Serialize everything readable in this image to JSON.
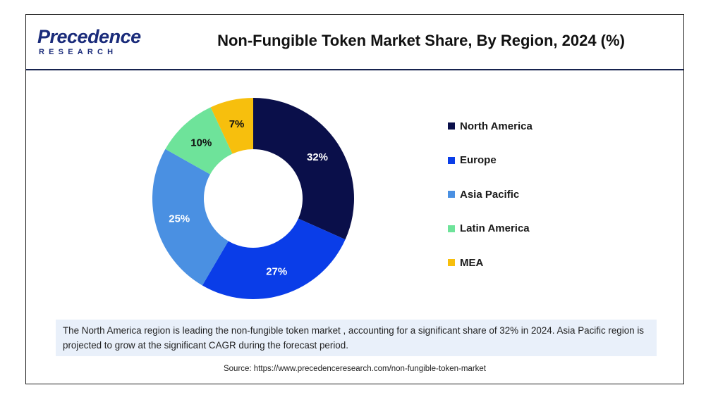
{
  "header": {
    "logo_top": "Precedence",
    "logo_bottom": "RESEARCH",
    "title": "Non-Fungible Token Market Share, By Region, 2024 (%)"
  },
  "chart_data": {
    "type": "pie",
    "variant": "donut",
    "title": "Non-Fungible Token Market Share, By Region, 2024 (%)",
    "unit": "%",
    "legend_position": "right",
    "slices": [
      {
        "label": "North America",
        "value": 32,
        "value_label": "32%",
        "color": "#0a0f4a",
        "label_color": "#ffffff"
      },
      {
        "label": "Europe",
        "value": 27,
        "value_label": "27%",
        "color": "#0a3de8",
        "label_color": "#ffffff"
      },
      {
        "label": "Asia Pacific",
        "value": 25,
        "value_label": "25%",
        "color": "#4a90e2",
        "label_color": "#ffffff"
      },
      {
        "label": "Latin America",
        "value": 10,
        "value_label": "10%",
        "color": "#6ee39a",
        "label_color": "#111111"
      },
      {
        "label": "MEA",
        "value": 7,
        "value_label": "7%",
        "color": "#f7bf0d",
        "label_color": "#111111"
      }
    ]
  },
  "note": "The North America region is leading the non-fungible token market , accounting for a significant share of 32% in 2024. Asia Pacific region is projected to grow at the significant CAGR during the forecast period.",
  "source": "Source: https://www.precedenceresearch.com/non-fungible-token-market"
}
